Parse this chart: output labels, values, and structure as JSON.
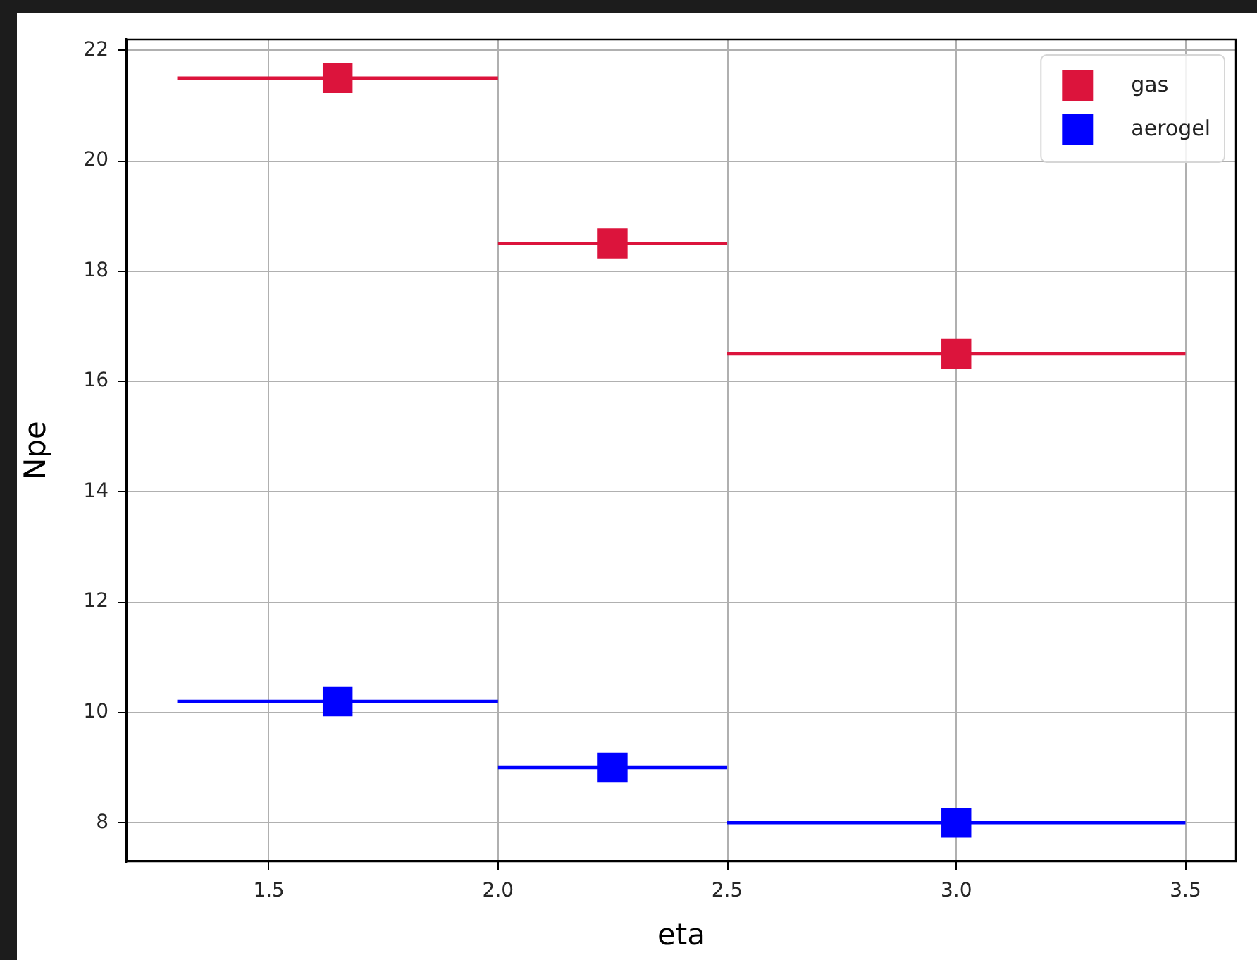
{
  "chart_data": {
    "type": "scatter",
    "x": [
      1.65,
      2.25,
      3.0
    ],
    "series": [
      {
        "name": "gas",
        "color": "#dc143c",
        "values": [
          21.5,
          18.5,
          16.5
        ],
        "xerrors": [
          0.35,
          0.25,
          0.5
        ]
      },
      {
        "name": "aerogel",
        "color": "#0000ff",
        "values": [
          10.2,
          9.0,
          8.0
        ],
        "xerrors": [
          0.35,
          0.25,
          0.5
        ]
      }
    ],
    "xlabel": "eta",
    "ylabel": "Npe",
    "xlim": [
      1.19,
      3.61
    ],
    "ylim": [
      7.3,
      22.2
    ],
    "xticks": [
      1.5,
      {
        "value": 2,
        "label": "2.0"
      },
      2.5,
      {
        "value": 3,
        "label": "3.0"
      },
      3.5
    ],
    "yticks": [
      8,
      10,
      12,
      14,
      16,
      18,
      20,
      22
    ],
    "grid": true,
    "legend": "top right",
    "marker": "square"
  }
}
